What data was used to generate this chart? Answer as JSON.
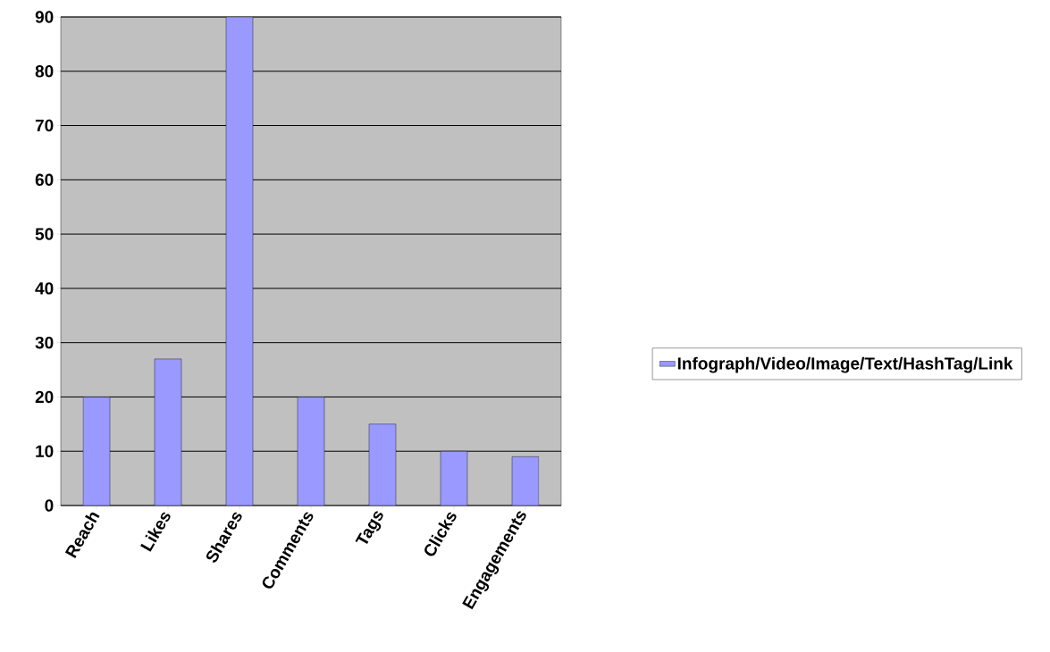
{
  "chart_data": {
    "type": "bar",
    "categories": [
      "Reach",
      "Likes",
      "Shares",
      "Comments",
      "Tags",
      "Clicks",
      "Engagements"
    ],
    "series": [
      {
        "name": "Infograph/Video/Image/Text/HashTag/Link",
        "color": "#9999ff",
        "values": [
          20,
          27,
          90,
          20,
          15,
          10,
          9
        ]
      }
    ],
    "ylim": [
      0,
      90
    ],
    "yticks": [
      0,
      10,
      20,
      30,
      40,
      50,
      60,
      70,
      80,
      90
    ],
    "grid": "y",
    "legend": "right"
  }
}
